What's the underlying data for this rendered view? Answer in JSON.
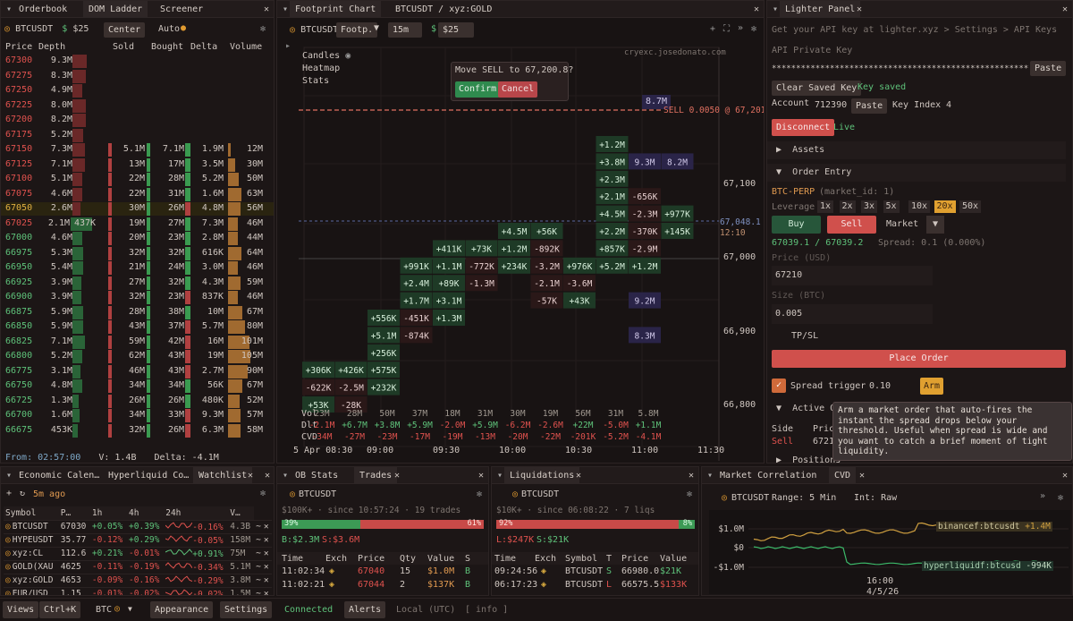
{
  "orderbook": {
    "tabs": [
      "Orderbook",
      "DOM Ladder",
      "Screener"
    ],
    "symbol": "BTCUSDT",
    "dollar": "$",
    "size": "$25",
    "center": "Center",
    "auto": "Auto",
    "cols": [
      "Price",
      "Depth",
      "Sold",
      "Bought",
      "Delta",
      "Volume"
    ],
    "rows": [
      {
        "p": "67300",
        "d": "9.3M",
        "s": "",
        "b": "",
        "dl": "",
        "v": "",
        "dw": 0.22,
        "ask": true
      },
      {
        "p": "67275",
        "d": "8.3M",
        "s": "",
        "b": "",
        "dl": "",
        "v": "",
        "dw": 0.2,
        "ask": true
      },
      {
        "p": "67250",
        "d": "4.9M",
        "s": "",
        "b": "",
        "dl": "",
        "v": "",
        "dw": 0.12,
        "ask": true
      },
      {
        "p": "67225",
        "d": "8.0M",
        "s": "",
        "b": "",
        "dl": "",
        "v": "",
        "dw": 0.19,
        "ask": true
      },
      {
        "p": "67200",
        "d": "8.2M",
        "s": "",
        "b": "",
        "dl": "",
        "v": "",
        "dw": 0.2,
        "ask": true
      },
      {
        "p": "67175",
        "d": "5.2M",
        "s": "",
        "b": "",
        "dl": "",
        "v": "",
        "dw": 0.13,
        "ask": true
      },
      {
        "p": "67150",
        "d": "7.3M",
        "s": "5.1M",
        "b": "7.1M",
        "dl": "1.9M",
        "v": "12M",
        "dw": 0.18,
        "ask": true,
        "dp": 1,
        "vw": 0.1
      },
      {
        "p": "67125",
        "d": "7.1M",
        "s": "13M",
        "b": "17M",
        "dl": "3.5M",
        "v": "30M",
        "dw": 0.17,
        "ask": true,
        "dp": 1,
        "vw": 0.25
      },
      {
        "p": "67100",
        "d": "5.1M",
        "s": "22M",
        "b": "28M",
        "dl": "5.2M",
        "v": "50M",
        "dw": 0.12,
        "ask": true,
        "dp": 1,
        "vw": 0.4
      },
      {
        "p": "67075",
        "d": "4.6M",
        "s": "22M",
        "b": "31M",
        "dl": "1.6M",
        "v": "63M",
        "dw": 0.11,
        "ask": true,
        "dp": 1,
        "vw": 0.5
      },
      {
        "p": "67050",
        "d": "2.6M",
        "s": "30M",
        "b": "26M",
        "dl": "4.8M",
        "v": "56M",
        "dw": 0.06,
        "ask": true,
        "dp": 0,
        "vw": 0.45,
        "hl": true
      },
      {
        "p": "67025",
        "d": "2.1M",
        "s": "19M",
        "b": "27M",
        "dl": "7.3M",
        "v": "46M",
        "dw": 0.35,
        "ask": true,
        "dp": 1,
        "vw": 0.37,
        "d2": "437K"
      },
      {
        "p": "67000",
        "d": "4.6M",
        "s": "20M",
        "b": "23M",
        "dl": "2.8M",
        "v": "44M",
        "dw": 0.11,
        "dp": 1,
        "vw": 0.35
      },
      {
        "p": "66975",
        "d": "5.3M",
        "s": "32M",
        "b": "32M",
        "dl": "616K",
        "v": "64M",
        "dw": 0.13,
        "dp": 1,
        "vw": 0.51
      },
      {
        "p": "66950",
        "d": "5.4M",
        "s": "21M",
        "b": "24M",
        "dl": "3.0M",
        "v": "46M",
        "dw": 0.13,
        "dp": 1,
        "vw": 0.37
      },
      {
        "p": "66925",
        "d": "3.9M",
        "s": "27M",
        "b": "32M",
        "dl": "4.3M",
        "v": "59M",
        "dw": 0.09,
        "dp": 1,
        "vw": 0.47
      },
      {
        "p": "66900",
        "d": "3.9M",
        "s": "32M",
        "b": "23M",
        "dl": "837K",
        "v": "46M",
        "dw": 0.09,
        "dp": 0,
        "vw": 0.37
      },
      {
        "p": "66875",
        "d": "5.9M",
        "s": "28M",
        "b": "38M",
        "dl": "10M",
        "v": "67M",
        "dw": 0.14,
        "dp": 1,
        "vw": 0.54
      },
      {
        "p": "66850",
        "d": "5.9M",
        "s": "43M",
        "b": "37M",
        "dl": "5.7M",
        "v": "80M",
        "dw": 0.14,
        "dp": 0,
        "vw": 0.64
      },
      {
        "p": "66825",
        "d": "7.1M",
        "s": "59M",
        "b": "42M",
        "dl": "16M",
        "v": "101M",
        "dw": 0.17,
        "dp": 0,
        "vw": 0.81
      },
      {
        "p": "66800",
        "d": "5.2M",
        "s": "62M",
        "b": "43M",
        "dl": "19M",
        "v": "105M",
        "dw": 0.12,
        "dp": 0,
        "vw": 0.84
      },
      {
        "p": "66775",
        "d": "3.1M",
        "s": "46M",
        "b": "43M",
        "dl": "2.7M",
        "v": "90M",
        "dw": 0.07,
        "dp": 0,
        "vw": 0.72
      },
      {
        "p": "66750",
        "d": "4.8M",
        "s": "34M",
        "b": "34M",
        "dl": "56K",
        "v": "67M",
        "dw": 0.11,
        "dp": 1,
        "vw": 0.54
      },
      {
        "p": "66725",
        "d": "1.3M",
        "s": "26M",
        "b": "26M",
        "dl": "480K",
        "v": "52M",
        "dw": 0.03,
        "dp": 1,
        "vw": 0.42
      },
      {
        "p": "66700",
        "d": "1.6M",
        "s": "34M",
        "b": "33M",
        "dl": "9.3M",
        "v": "57M",
        "dw": 0.04,
        "dp": 0,
        "vw": 0.46
      },
      {
        "p": "66675",
        "d": "453K",
        "s": "32M",
        "b": "26M",
        "dl": "6.3M",
        "v": "58M",
        "dw": 0.01,
        "dp": 0,
        "vw": 0.46
      }
    ],
    "footer": {
      "from": "From: 02:57:00",
      "v": "V: 1.4B",
      "delta": "Delta: -4.1M"
    }
  },
  "footprint": {
    "tabs": [
      "Footprint Chart",
      "BTCUSDT / xyz:GOLD"
    ],
    "symbol": "BTCUSDT",
    "type": "Footp.",
    "tf": "15m",
    "dollar": "$",
    "size": "$25",
    "overlay": [
      "Candles",
      "Heatmap",
      "Stats"
    ],
    "watermark": "cryexc.josedonato.com",
    "confirm": {
      "q": "Move SELL to 67,200.8?",
      "ok": "Confirm",
      "cancel": "Cancel"
    },
    "sell_line": "SELL 0.0050 @ 67,201",
    "sell_size": "8.7M",
    "yticks": [
      "67,100",
      "67,000",
      "66,900",
      "66,800"
    ],
    "cur_price": "67,048.1",
    "cur_time": "12:10",
    "cells": [
      {
        "c": 0,
        "r": 13,
        "t": "+306K",
        "k": "g"
      },
      {
        "c": 0,
        "r": 14,
        "t": "-622K",
        "k": "r"
      },
      {
        "c": 0,
        "r": 15,
        "t": "+53K",
        "k": "g"
      },
      {
        "c": 1,
        "r": 13,
        "t": "+426K",
        "k": "g"
      },
      {
        "c": 1,
        "r": 14,
        "t": "-2.5M",
        "k": "r"
      },
      {
        "c": 1,
        "r": 15,
        "t": "-28K",
        "k": "r"
      },
      {
        "c": 2,
        "r": 10,
        "t": "+556K",
        "k": "g"
      },
      {
        "c": 2,
        "r": 11,
        "t": "+5.1M",
        "k": "g"
      },
      {
        "c": 2,
        "r": 12,
        "t": "+256K",
        "k": "g"
      },
      {
        "c": 2,
        "r": 13,
        "t": "+575K",
        "k": "g"
      },
      {
        "c": 2,
        "r": 14,
        "t": "+232K",
        "k": "g"
      },
      {
        "c": 3,
        "r": 7,
        "t": "+991K",
        "k": "g"
      },
      {
        "c": 3,
        "r": 8,
        "t": "+2.4M",
        "k": "g"
      },
      {
        "c": 3,
        "r": 9,
        "t": "+1.7M",
        "k": "g"
      },
      {
        "c": 3,
        "r": 10,
        "t": "-451K",
        "k": "r"
      },
      {
        "c": 3,
        "r": 11,
        "t": "-874K",
        "k": "r"
      },
      {
        "c": 4,
        "r": 6,
        "t": "+411K",
        "k": "g"
      },
      {
        "c": 4,
        "r": 7,
        "t": "+1.1M",
        "k": "g"
      },
      {
        "c": 4,
        "r": 8,
        "t": "+89K",
        "k": "g"
      },
      {
        "c": 4,
        "r": 9,
        "t": "+3.1M",
        "k": "g"
      },
      {
        "c": 4,
        "r": 10,
        "t": "+1.3M",
        "k": "g"
      },
      {
        "c": 5,
        "r": 6,
        "t": "+73K",
        "k": "g"
      },
      {
        "c": 5,
        "r": 7,
        "t": "-772K",
        "k": "r"
      },
      {
        "c": 5,
        "r": 8,
        "t": "-1.3M",
        "k": "r"
      },
      {
        "c": 6,
        "r": 5,
        "t": "+4.5M",
        "k": "g"
      },
      {
        "c": 6,
        "r": 6,
        "t": "+1.2M",
        "k": "g"
      },
      {
        "c": 6,
        "r": 7,
        "t": "+234K",
        "k": "g"
      },
      {
        "c": 7,
        "r": 5,
        "t": "+56K",
        "k": "g"
      },
      {
        "c": 7,
        "r": 6,
        "t": "-892K",
        "k": "r"
      },
      {
        "c": 7,
        "r": 7,
        "t": "-3.2M",
        "k": "r"
      },
      {
        "c": 7,
        "r": 8,
        "t": "-2.1M",
        "k": "r"
      },
      {
        "c": 7,
        "r": 9,
        "t": "-57K",
        "k": "r"
      },
      {
        "c": 8,
        "r": 7,
        "t": "+976K",
        "k": "g"
      },
      {
        "c": 8,
        "r": 8,
        "t": "-3.6M",
        "k": "r"
      },
      {
        "c": 8,
        "r": 9,
        "t": "+43K",
        "k": "g"
      },
      {
        "c": 9,
        "r": 0,
        "t": "+1.2M",
        "k": "g"
      },
      {
        "c": 9,
        "r": 1,
        "t": "+3.8M",
        "k": "g"
      },
      {
        "c": 9,
        "r": 2,
        "t": "+2.3M",
        "k": "g"
      },
      {
        "c": 9,
        "r": 3,
        "t": "+2.1M",
        "k": "g"
      },
      {
        "c": 9,
        "r": 4,
        "t": "+4.5M",
        "k": "g"
      },
      {
        "c": 9,
        "r": 5,
        "t": "+2.2M",
        "k": "g"
      },
      {
        "c": 9,
        "r": 6,
        "t": "+857K",
        "k": "g"
      },
      {
        "c": 9,
        "r": 7,
        "t": "+5.2M",
        "k": "g"
      },
      {
        "c": 10,
        "r": 1,
        "t": "9.3M",
        "k": "b"
      },
      {
        "c": 10,
        "r": 3,
        "t": "-656K",
        "k": "r"
      },
      {
        "c": 10,
        "r": 4,
        "t": "-2.3M",
        "k": "r"
      },
      {
        "c": 10,
        "r": 5,
        "t": "-370K",
        "k": "r"
      },
      {
        "c": 10,
        "r": 6,
        "t": "-2.9M",
        "k": "r"
      },
      {
        "c": 10,
        "r": 7,
        "t": "+1.2M",
        "k": "g"
      },
      {
        "c": 10,
        "r": 9,
        "t": "9.2M",
        "k": "b"
      },
      {
        "c": 10,
        "r": 11,
        "t": "8.3M",
        "k": "b"
      },
      {
        "c": 11,
        "r": 1,
        "t": "8.2M",
        "k": "b"
      },
      {
        "c": 11,
        "r": 4,
        "t": "+977K",
        "k": "g"
      },
      {
        "c": 11,
        "r": 5,
        "t": "+145K",
        "k": "g"
      }
    ],
    "stats": {
      "vol": [
        "23M",
        "28M",
        "50M",
        "37M",
        "18M",
        "31M",
        "30M",
        "19M",
        "56M",
        "31M",
        "5.8M"
      ],
      "dlt": [
        "-2.1M",
        "+6.7M",
        "+3.8M",
        "+5.9M",
        "-2.0M",
        "+5.9M",
        "-6.2M",
        "-2.6M",
        "+22M",
        "-5.0M",
        "+1.1M"
      ],
      "cvd": [
        "-34M",
        "-27M",
        "-23M",
        "-17M",
        "-19M",
        "-13M",
        "-20M",
        "-22M",
        "-201K",
        "-5.2M",
        "-4.1M"
      ],
      "labels": [
        "Vol",
        "Dlt",
        "CVD"
      ]
    },
    "xticks": [
      "5 Apr 08:30",
      "09:00",
      "09:30",
      "10:00",
      "10:30",
      "11:00",
      "11:30"
    ]
  },
  "lighter": {
    "tab": "Lighter Panel",
    "hint": "Get your API key at lighter.xyz > Settings > API Keys",
    "key_label": "API Private Key",
    "key_value": "**********************************************************",
    "paste": "Paste",
    "clear": "Clear Saved Key",
    "saved": "Key saved",
    "account_label": "Account",
    "account": "712390",
    "keyidx_label": "Key Index",
    "keyidx": "4",
    "disconnect": "Disconnect",
    "live": "Live",
    "assets": "Assets",
    "order_entry": "Order Entry",
    "market": "BTC-PERP",
    "market_id": "(market_id: 1)",
    "leverage_label": "Leverage",
    "leverages": [
      "1x",
      "2x",
      "3x",
      "5x",
      "10x",
      "20x",
      "50x"
    ],
    "buy": "Buy",
    "sell": "Sell",
    "otype": "Market",
    "quote": "67039.1 / 67039.2",
    "spread": "Spread: 0.1 (0.000%)",
    "price_ph": "Price (USD)",
    "price": "67210",
    "size_ph": "Size (BTC)",
    "size": "0.005",
    "tpsl": "TP/SL",
    "place": "Place Order",
    "spread_trigger": "Spread trigger",
    "spread_val": "0.10",
    "arm": "Arm",
    "active": "Active O",
    "side": "Side",
    "pric": "Pric",
    "sell_row": "Sell",
    "price_row": "6721",
    "positions": "Positions",
    "tooltip": "Arm a market order that auto-fires the instant the spread drops below your threshold. Useful when spread is wide and you want to catch a brief moment of tight liquidity."
  },
  "watch": {
    "tabs": [
      "Economic Calen…",
      "Hyperliquid Co…",
      "Watchlist"
    ],
    "ago": "5m ago",
    "cols": [
      "Symbol",
      "P…",
      "1h",
      "4h",
      "24h",
      "V…"
    ],
    "rows": [
      {
        "s": "BTCUSDT",
        "p": "67030",
        "h1": "+0.05%",
        "h4": "+0.39%",
        "d": "-0.16%",
        "v": "4.3B",
        "c1": "g",
        "c4": "g",
        "cd": "r"
      },
      {
        "s": "HYPEUSDT",
        "p": "35.77",
        "h1": "-0.12%",
        "h4": "+0.29%",
        "d": "-0.05%",
        "v": "158M",
        "c1": "r",
        "c4": "g",
        "cd": "r"
      },
      {
        "s": "xyz:CL",
        "p": "112.6",
        "h1": "+0.21%",
        "h4": "-0.01%",
        "d": "+0.91%",
        "v": "75M",
        "c1": "g",
        "c4": "r",
        "cd": "g"
      },
      {
        "s": "GOLD(XAU",
        "p": "4625",
        "h1": "-0.11%",
        "h4": "-0.19%",
        "d": "-0.34%",
        "v": "5.1M",
        "c1": "r",
        "c4": "r",
        "cd": "r"
      },
      {
        "s": "xyz:GOLD",
        "p": "4653",
        "h1": "-0.09%",
        "h4": "-0.16%",
        "d": "-0.29%",
        "v": "3.8M",
        "c1": "r",
        "c4": "r",
        "cd": "r"
      },
      {
        "s": "EUR/USD",
        "p": "1.15",
        "h1": "-0.01%",
        "h4": "-0.02%",
        "d": "-0.02%",
        "v": "1.5M",
        "c1": "r",
        "c4": "r",
        "cd": "r"
      }
    ]
  },
  "trades": {
    "tabs": [
      "OB Stats",
      "Trades"
    ],
    "symbol": "BTCUSDT",
    "since": "$100K+ · since 10:57:24 · 19 trades",
    "buy_pct": "39%",
    "sell_pct": "61%",
    "buy_frac": 0.39,
    "b": "B:$2.3M",
    "s": "S:$3.6M",
    "cols": [
      "Time",
      "Exch",
      "Price",
      "Qty",
      "Value",
      "S"
    ],
    "rows": [
      {
        "t": "11:02:34",
        "p": "67040",
        "q": "15",
        "v": "$1.0M",
        "s": "B"
      },
      {
        "t": "11:02:21",
        "p": "67044",
        "q": "2",
        "v": "$137K",
        "s": "B"
      }
    ]
  },
  "liq": {
    "tab": "Liquidations",
    "symbol": "BTCUSDT",
    "since": "$10K+ · since 06:08:22 · 7 liqs",
    "sell_pct": "92%",
    "buy_pct": "8%",
    "sell_frac": 0.92,
    "l": "L:$247K",
    "s": "S:$21K",
    "cols": [
      "Time",
      "Exch",
      "Symbol",
      "T",
      "Price",
      "Value"
    ],
    "rows": [
      {
        "t": "09:24:56",
        "sym": "BTCUSDT",
        "ty": "S",
        "p": "66980.0",
        "v": "$21K",
        "c": "g"
      },
      {
        "t": "06:17:23",
        "sym": "BTCUSDT",
        "ty": "L",
        "p": "66575.5",
        "v": "$133K",
        "c": "r"
      }
    ]
  },
  "corr": {
    "tabs": [
      "Market Correlation",
      "CVD"
    ],
    "symbol": "BTCUSDT",
    "range": "Range: 5 Min",
    "int": "Int: Raw",
    "yticks": [
      "$1.0M",
      "$0",
      "-$1.0M"
    ],
    "s1": "binancef:btcusdt",
    "s1v": "+1.4M",
    "s2": "hyperliquidf:btcusd",
    "s2v": "-994K",
    "xt": "16:00",
    "date": "4/5/26"
  },
  "status": {
    "views": "Views",
    "ctrlk": "Ctrl+K",
    "btc": "BTC",
    "appearance": "Appearance",
    "settings": "Settings",
    "connected": "Connected",
    "alerts": "Alerts",
    "local": "Local (UTC)",
    "info": "[ info ]"
  }
}
